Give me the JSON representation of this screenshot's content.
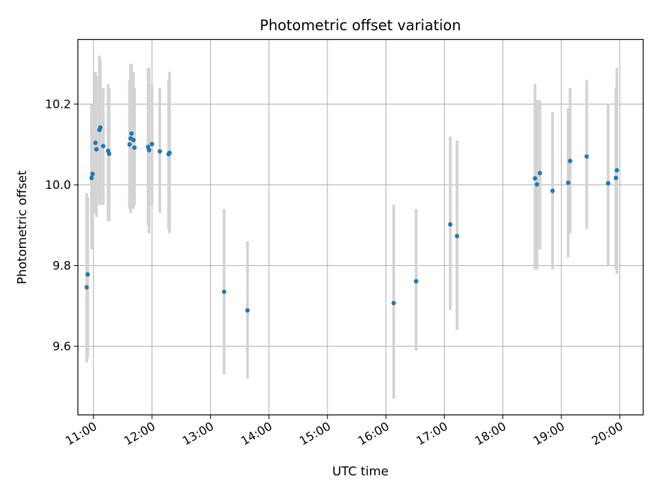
{
  "chart_data": {
    "type": "scatter",
    "title": "Photometric offset variation",
    "xlabel": "UTC time",
    "ylabel": "Photometric offset",
    "x_unit": "time",
    "xlim": [
      "10:44",
      "20:24"
    ],
    "ylim": [
      9.43,
      10.36
    ],
    "grid": true,
    "colors": {
      "points": "#1f77b4",
      "errorbars": "#d3d3d3"
    },
    "x_ticks": [
      "11:00",
      "12:00",
      "13:00",
      "14:00",
      "15:00",
      "16:00",
      "17:00",
      "18:00",
      "19:00",
      "20:00"
    ],
    "y_ticks": [
      "9.6",
      "9.8",
      "10.0",
      "10.2"
    ],
    "points": [
      {
        "x": "10:53",
        "y": 9.746,
        "err_low": 9.56,
        "err_high": 9.98
      },
      {
        "x": "10:54",
        "y": 9.778,
        "err_low": 9.57,
        "err_high": 9.97
      },
      {
        "x": "10:58",
        "y": 10.017,
        "err_low": 9.84,
        "err_high": 10.2
      },
      {
        "x": "10:59",
        "y": 10.027,
        "err_low": 9.85,
        "err_high": 10.2
      },
      {
        "x": "11:02",
        "y": 10.104,
        "err_low": 9.93,
        "err_high": 10.28
      },
      {
        "x": "11:03",
        "y": 10.088,
        "err_low": 9.92,
        "err_high": 10.27
      },
      {
        "x": "11:06",
        "y": 10.136,
        "err_low": 9.95,
        "err_high": 10.32
      },
      {
        "x": "11:07",
        "y": 10.142,
        "err_low": 9.95,
        "err_high": 10.31
      },
      {
        "x": "11:10",
        "y": 10.096,
        "err_low": 9.95,
        "err_high": 10.24
      },
      {
        "x": "11:15",
        "y": 10.084,
        "err_low": 9.91,
        "err_high": 10.25
      },
      {
        "x": "11:16",
        "y": 10.077,
        "err_low": 9.91,
        "err_high": 10.24
      },
      {
        "x": "11:37",
        "y": 10.1,
        "err_low": 9.94,
        "err_high": 10.26
      },
      {
        "x": "11:38",
        "y": 10.115,
        "err_low": 9.93,
        "err_high": 10.3
      },
      {
        "x": "11:39",
        "y": 10.127,
        "err_low": 9.94,
        "err_high": 10.3
      },
      {
        "x": "11:41",
        "y": 10.111,
        "err_low": 9.94,
        "err_high": 10.28
      },
      {
        "x": "11:42",
        "y": 10.092,
        "err_low": 9.95,
        "err_high": 10.24
      },
      {
        "x": "11:56",
        "y": 10.094,
        "err_low": 9.9,
        "err_high": 10.29
      },
      {
        "x": "11:57",
        "y": 10.086,
        "err_low": 9.88,
        "err_high": 10.29
      },
      {
        "x": "12:00",
        "y": 10.101,
        "err_low": 9.95,
        "err_high": 10.25
      },
      {
        "x": "12:08",
        "y": 10.083,
        "err_low": 9.93,
        "err_high": 10.24
      },
      {
        "x": "12:17",
        "y": 10.076,
        "err_low": 9.89,
        "err_high": 10.26
      },
      {
        "x": "12:18",
        "y": 10.079,
        "err_low": 9.88,
        "err_high": 10.28
      },
      {
        "x": "13:14",
        "y": 9.735,
        "err_low": 9.53,
        "err_high": 9.94
      },
      {
        "x": "13:38",
        "y": 9.689,
        "err_low": 9.52,
        "err_high": 9.86
      },
      {
        "x": "16:08",
        "y": 9.707,
        "err_low": 9.47,
        "err_high": 9.95
      },
      {
        "x": "16:31",
        "y": 9.761,
        "err_low": 9.59,
        "err_high": 9.94
      },
      {
        "x": "17:06",
        "y": 9.902,
        "err_low": 9.69,
        "err_high": 10.12
      },
      {
        "x": "17:13",
        "y": 9.873,
        "err_low": 9.64,
        "err_high": 10.11
      },
      {
        "x": "18:33",
        "y": 10.016,
        "err_low": 9.79,
        "err_high": 10.25
      },
      {
        "x": "18:35",
        "y": 10.001,
        "err_low": 9.79,
        "err_high": 10.21
      },
      {
        "x": "18:38",
        "y": 10.029,
        "err_low": 9.84,
        "err_high": 10.21
      },
      {
        "x": "18:51",
        "y": 9.985,
        "err_low": 9.79,
        "err_high": 10.18
      },
      {
        "x": "19:07",
        "y": 10.005,
        "err_low": 9.82,
        "err_high": 10.19
      },
      {
        "x": "19:09",
        "y": 10.059,
        "err_low": 9.88,
        "err_high": 10.24
      },
      {
        "x": "19:26",
        "y": 10.07,
        "err_low": 9.89,
        "err_high": 10.26
      },
      {
        "x": "19:48",
        "y": 10.004,
        "err_low": 9.8,
        "err_high": 10.2
      },
      {
        "x": "19:56",
        "y": 10.017,
        "err_low": 9.79,
        "err_high": 10.24
      },
      {
        "x": "19:57",
        "y": 10.036,
        "err_low": 9.78,
        "err_high": 10.29
      }
    ]
  }
}
